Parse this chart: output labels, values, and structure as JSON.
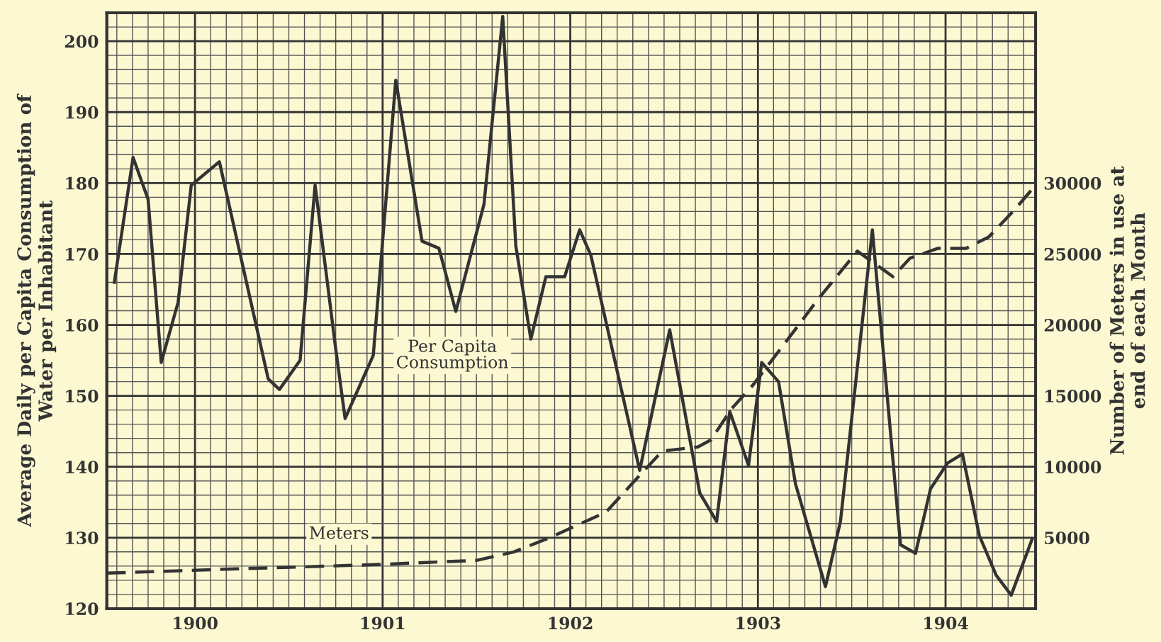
{
  "chart_data": {
    "type": "line",
    "ylabel": "Average Daily per Capita Consumption of\nWater per Inhabitant",
    "y2label": "Number of Meters in use at\nend of each Month",
    "xlim": [
      1899.53,
      1904.48
    ],
    "xticks": [
      1900,
      1901,
      1902,
      1903,
      1904
    ],
    "ylim": [
      120,
      204
    ],
    "yticks": [
      120,
      130,
      140,
      150,
      160,
      170,
      180,
      190,
      200
    ],
    "y2lim": [
      0,
      42000
    ],
    "y2ticks": [
      5000,
      10000,
      15000,
      20000,
      25000,
      30000
    ],
    "grid": true,
    "marker": "none",
    "series": [
      {
        "name": "Per Capita Consumption",
        "color": "#333333",
        "line_style": "solid",
        "x": [
          1899.57,
          1899.67,
          1899.75,
          1899.82,
          1899.91,
          1899.98,
          1900.13,
          1900.39,
          1900.45,
          1900.56,
          1900.64,
          1900.75,
          1900.8,
          1900.95,
          1901.07,
          1901.21,
          1901.3,
          1901.39,
          1901.54,
          1901.64,
          1901.71,
          1901.79,
          1901.87,
          1901.97,
          1902.05,
          1902.11,
          1902.37,
          1902.53,
          1902.69,
          1902.78,
          1902.85,
          1902.95,
          1903.02,
          1903.11,
          1903.2,
          1903.36,
          1903.44,
          1903.61,
          1903.76,
          1903.84,
          1903.92,
          1904.01,
          1904.09,
          1904.18,
          1904.27,
          1904.35,
          1904.46
        ],
        "values": [
          166,
          183.6,
          177.7,
          154.7,
          163.2,
          179.7,
          183,
          152.4,
          150.9,
          155,
          179.7,
          156.6,
          146.8,
          155.7,
          194.5,
          171.8,
          170.8,
          161.9,
          177,
          203.5,
          171.1,
          158,
          166.8,
          166.8,
          173.4,
          169.8,
          139.5,
          159.3,
          136.3,
          132.3,
          147.8,
          140.2,
          154.7,
          152,
          137.6,
          123.1,
          132.3,
          173.4,
          129,
          127.8,
          136.9,
          140.5,
          141.8,
          130.3,
          124.7,
          121.9,
          129.7
        ]
      },
      {
        "name": "Meters",
        "color": "#333333",
        "line_style": "dashed",
        "axis": "y2",
        "x": [
          1899.53,
          1900.22,
          1900.96,
          1901.5,
          1901.7,
          1901.89,
          1902.19,
          1902.37,
          1902.49,
          1902.68,
          1902.75,
          1902.86,
          1902.97,
          1903.12,
          1903.32,
          1903.53,
          1903.72,
          1903.81,
          1903.96,
          1904.11,
          1904.23,
          1904.36,
          1904.47
        ],
        "values": [
          2500,
          2800,
          3100,
          3400,
          4000,
          5000,
          6800,
          9400,
          11100,
          11400,
          11900,
          14100,
          15700,
          18300,
          21800,
          25200,
          23400,
          24700,
          25400,
          25400,
          26200,
          28000,
          29700
        ]
      }
    ]
  }
}
